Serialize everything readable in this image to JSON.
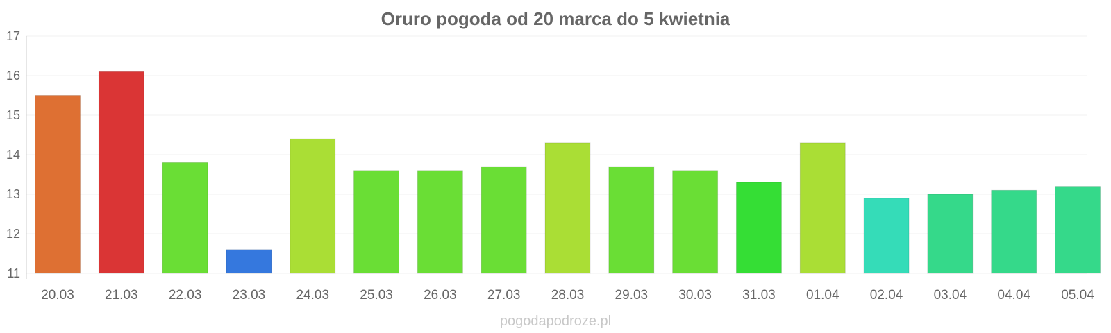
{
  "chart_data": {
    "type": "bar",
    "title": "Oruro pogoda od 20 marca do 5 kwietnia",
    "xlabel": "",
    "ylabel": "",
    "ylim": [
      11,
      17
    ],
    "yticks": [
      11,
      12,
      13,
      14,
      15,
      16,
      17
    ],
    "grid": true,
    "categories": [
      "20.03",
      "21.03",
      "22.03",
      "23.03",
      "24.03",
      "25.03",
      "26.03",
      "27.03",
      "28.03",
      "29.03",
      "30.03",
      "31.03",
      "01.04",
      "02.04",
      "03.04",
      "04.04",
      "05.04"
    ],
    "values": [
      15.5,
      16.1,
      13.8,
      11.6,
      14.4,
      13.6,
      13.6,
      13.7,
      14.3,
      13.7,
      13.6,
      13.3,
      14.3,
      12.9,
      13.0,
      13.1,
      13.2
    ],
    "colors": [
      "#de7033",
      "#da3535",
      "#6ade35",
      "#3578de",
      "#aade35",
      "#6ade35",
      "#6ade35",
      "#6ade35",
      "#aade35",
      "#6ade35",
      "#6ade35",
      "#35de35",
      "#aade35",
      "#35dcb8",
      "#35d98a",
      "#35d98a",
      "#35d98a"
    ]
  },
  "watermark": "pogodapodroze.pl"
}
